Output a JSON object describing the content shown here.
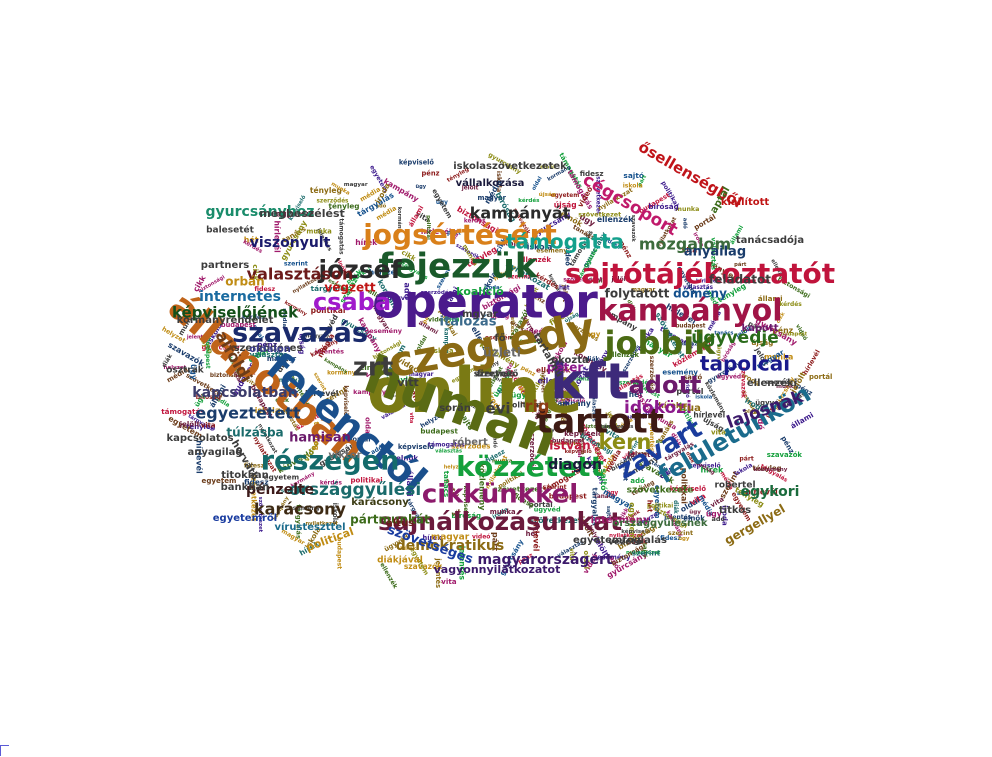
{
  "cloud": {
    "words": [
      {
        "text": "online",
        "color": "#7a7a14",
        "angle": 0
      },
      {
        "text": "operator",
        "color": "#4b1a8c",
        "angle": 0
      },
      {
        "text": "human",
        "color": "#5a6b14",
        "angle": 20
      },
      {
        "text": "czeglédy",
        "color": "#8a6a14",
        "angle": -10
      },
      {
        "text": "kft",
        "color": "#3d2a7a",
        "angle": 0
      },
      {
        "text": "állapotban",
        "color": "#c0641a",
        "angle": 40
      },
      {
        "text": "ferenctől",
        "color": "#1a4f8c",
        "angle": 40
      },
      {
        "text": "fejezzük",
        "color": "#1a5a2a",
        "angle": 0
      },
      {
        "text": "jogsértésért",
        "color": "#d9801a",
        "angle": 0
      },
      {
        "text": "sajtótájékoztatót",
        "color": "#c0143c",
        "angle": 0
      },
      {
        "text": "kampányol",
        "color": "#a01446",
        "angle": 0
      },
      {
        "text": "jobbik",
        "color": "#4b6b14",
        "angle": 0
      },
      {
        "text": "tartott",
        "color": "#3d1a14",
        "angle": 0
      },
      {
        "text": "közzétett",
        "color": "#14a03c",
        "angle": 0
      },
      {
        "text": "cikkünkkel",
        "color": "#8c1a6b",
        "angle": 0
      },
      {
        "text": "sajnálkozásunkat",
        "color": "#6b1a3c",
        "angle": 0
      },
      {
        "text": "részegen",
        "color": "#146b6b",
        "angle": 0
      },
      {
        "text": "szavazás",
        "color": "#1a2a6b",
        "angle": 0
      },
      {
        "text": "csaba",
        "color": "#a01acb",
        "angle": 0
      },
      {
        "text": "józsef",
        "color": "#2a2a2a",
        "angle": 0
      },
      {
        "text": "zrt",
        "color": "#3d3d3d",
        "angle": 0
      },
      {
        "text": "zavart",
        "color": "#1a3c9c",
        "angle": -30
      },
      {
        "text": "felületünkön",
        "color": "#1a6b8c",
        "angle": -30
      },
      {
        "text": "adott",
        "color": "#6b1a6b",
        "angle": 0
      },
      {
        "text": "kern",
        "color": "#8c8c14",
        "angle": 0
      },
      {
        "text": "időközi",
        "color": "#8c1a8c",
        "angle": 0
      },
      {
        "text": "tapolcai",
        "color": "#1a1a8c",
        "angle": 0
      },
      {
        "text": "ügyvédje",
        "color": "#2a6b1a",
        "angle": 0
      },
      {
        "text": "lajosnak",
        "color": "#3c1a6b",
        "angle": -20
      },
      {
        "text": "támogatta",
        "color": "#14a08c",
        "angle": 0
      },
      {
        "text": "kampányát",
        "color": "#2a2a2a",
        "angle": 0
      },
      {
        "text": "cégcsoport",
        "color": "#c01a6b",
        "angle": 30
      },
      {
        "text": "ősellenségből",
        "color": "#c0141a",
        "angle": 30
      },
      {
        "text": "mozgalom",
        "color": "#3c6b3c",
        "angle": 0
      },
      {
        "text": "országgyűlési",
        "color": "#1a6b6b",
        "angle": 0
      },
      {
        "text": "karácsony",
        "color": "#3d2a14",
        "angle": 0
      },
      {
        "text": "demokratikus",
        "color": "#8c6b14",
        "angle": 0
      },
      {
        "text": "magyarországért",
        "color": "#3c1a6b",
        "angle": 0
      },
      {
        "text": "egyeztetett",
        "color": "#1a3c6b",
        "angle": 0
      },
      {
        "text": "valasztáson",
        "color": "#6b1a1a",
        "angle": 0
      },
      {
        "text": "képviselőjének",
        "color": "#14501a",
        "angle": 0
      },
      {
        "text": "internetes",
        "color": "#1a6ba0",
        "angle": 0
      },
      {
        "text": "gyurcsányhoz",
        "color": "#1a8c6b",
        "angle": 0
      },
      {
        "text": "viszonyult",
        "color": "#1a1a6b",
        "angle": 0
      },
      {
        "text": "alföldi",
        "color": "#6b3c1a",
        "angle": 60
      },
      {
        "text": "kapcsolatban",
        "color": "#3c3c6b",
        "angle": 0
      },
      {
        "text": "évi",
        "color": "#3c3c3c",
        "angle": 0
      },
      {
        "text": "rig",
        "color": "#8c3c14",
        "angle": 0
      },
      {
        "text": "diagon",
        "color": "#1a1a3c",
        "angle": 0
      },
      {
        "text": "pénzelte",
        "color": "#3c1a1a",
        "angle": 0
      },
      {
        "text": "egykori",
        "color": "#1a6b3c",
        "angle": 0
      },
      {
        "text": "szövetséges",
        "color": "#1a3ca0",
        "angle": 20
      },
      {
        "text": "italozás",
        "color": "#3c6b8c",
        "angle": 0
      },
      {
        "text": "folytatott",
        "color": "#3c3c3c",
        "angle": 0
      },
      {
        "text": "dömény",
        "color": "#14508c",
        "angle": 0
      },
      {
        "text": "anyailag",
        "color": "#1a3c6b",
        "angle": 0
      },
      {
        "text": "orbán",
        "color": "#c08c14",
        "angle": 0
      },
      {
        "text": "végzett",
        "color": "#c01414",
        "angle": 0
      },
      {
        "text": "megbeszélést",
        "color": "#3c3c3c",
        "angle": 0
      },
      {
        "text": "hamisan",
        "color": "#6b1a6b",
        "angle": 0
      },
      {
        "text": "túlzásba",
        "color": "#1a6b6b",
        "angle": 0
      },
      {
        "text": "vitt",
        "color": "#3c3c3c",
        "angle": 0
      },
      {
        "text": "istván",
        "color": "#c01a3c",
        "angle": 0
      },
      {
        "text": "üzleti",
        "color": "#6b6b6b",
        "angle": 0
      },
      {
        "text": "koalíció",
        "color": "#14a03c",
        "angle": 0
      },
      {
        "text": "péter",
        "color": "#8c1a8c",
        "angle": 0
      },
      {
        "text": "gergellyel",
        "color": "#8c6b14",
        "angle": -30
      },
      {
        "text": "intézmény",
        "color": "#a01a6b",
        "angle": 0
      },
      {
        "text": "pártmunkát",
        "color": "#3c6b1a",
        "angle": 0
      },
      {
        "text": "karácsony",
        "color": "#3c3c14",
        "angle": 0
      },
      {
        "text": "vagyonnyilatkozatot",
        "color": "#3c1a6b",
        "angle": 0
      },
      {
        "text": "vállalkozása",
        "color": "#1a1a3c",
        "angle": 0
      },
      {
        "text": "iskolaszövetkezetek",
        "color": "#3c3c3c",
        "angle": 0
      },
      {
        "text": "tanácsadója",
        "color": "#3c3c3c",
        "angle": 0
      },
      {
        "text": "ellenzéki",
        "color": "#3c3c3c",
        "angle": 0
      },
      {
        "text": "egyetemfoglalás",
        "color": "#3c3c3c",
        "angle": 0
      },
      {
        "text": "országgyűlésnek",
        "color": "#3c6b3c",
        "angle": 0
      },
      {
        "text": "kapcsolatos",
        "color": "#3c3c3c",
        "angle": 0
      },
      {
        "text": "viktor",
        "color": "#6b6b6b",
        "angle": 0
      },
      {
        "text": "róbert",
        "color": "#6b6b6b",
        "angle": 0
      },
      {
        "text": "horváth",
        "color": "#3c3c3c",
        "angle": 60
      },
      {
        "text": "titokban",
        "color": "#3c3c3c",
        "angle": 0
      },
      {
        "text": "bankban",
        "color": "#3c3c3c",
        "angle": 0
      },
      {
        "text": "anyagilag",
        "color": "#3c3c3c",
        "angle": 0
      },
      {
        "text": "political",
        "color": "#c08c14",
        "angle": -20
      },
      {
        "text": "vírusteszttel",
        "color": "#1a6b8c",
        "angle": 0
      },
      {
        "text": "egyetemről",
        "color": "#1a3ca0",
        "angle": 0
      },
      {
        "text": "altus",
        "color": "#6b1a1a",
        "angle": 0
      },
      {
        "text": "fő",
        "color": "#3c3c3c",
        "angle": 0
      },
      {
        "text": "magyar",
        "color": "#c08c14",
        "angle": 0
      },
      {
        "text": "mgyar",
        "color": "#3c3c3c",
        "angle": 0
      },
      {
        "text": "partners",
        "color": "#3c3c3c",
        "angle": 0
      },
      {
        "text": "kormányrendelet",
        "color": "#3c3c3c",
        "angle": 0
      },
      {
        "text": "szerződéses",
        "color": "#3c3c3c",
        "angle": 0
      },
      {
        "text": "balesetét",
        "color": "#3c3c3c",
        "angle": 0
      },
      {
        "text": "feladatot",
        "color": "#3c3c3c",
        "angle": 0
      },
      {
        "text": "aptal",
        "color": "#3c6b1a",
        "angle": -60
      },
      {
        "text": "kiállított",
        "color": "#c01414",
        "angle": 0
      },
      {
        "text": "robertel",
        "color": "#3c3c3c",
        "angle": 0
      },
      {
        "text": "szövetkezete",
        "color": "#3c6b1a",
        "angle": 0
      },
      {
        "text": "vezető",
        "color": "#3c3c3c",
        "angle": 0
      },
      {
        "text": "diákjával",
        "color": "#c08c14",
        "angle": 0
      },
      {
        "text": "oldalon",
        "color": "#3c3c8c",
        "angle": 0
      },
      {
        "text": "osztrák",
        "color": "#3c3c3c",
        "angle": 0
      },
      {
        "text": "során",
        "color": "#3c3c3c",
        "angle": 0
      },
      {
        "text": "tartalmú",
        "color": "#3c3c3c",
        "angle": 60
      },
      {
        "text": "okozta",
        "color": "#3c3c3c",
        "angle": 0
      },
      {
        "text": "ifua",
        "color": "#8c6b14",
        "angle": 0
      },
      {
        "text": "titkos",
        "color": "#3c3c3c",
        "angle": 0
      },
      {
        "text": "kapott",
        "color": "#6b1a6b",
        "angle": 0
      },
      {
        "text": "szervező",
        "color": "#3c3c3c",
        "angle": 0
      },
      {
        "text": "fizetnie",
        "color": "#3c3c3c",
        "angle": 0
      }
    ]
  }
}
